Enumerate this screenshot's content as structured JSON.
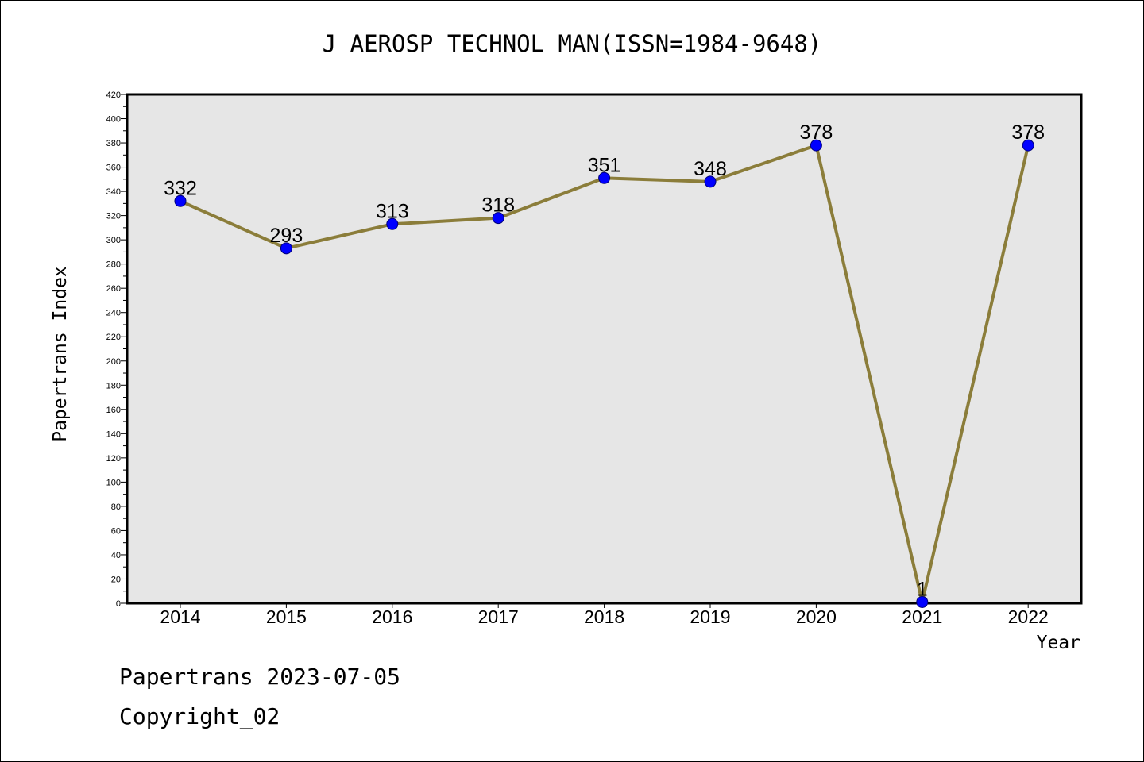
{
  "title": "J AEROSP TECHNOL MAN(ISSN=1984-9648)",
  "footer": {
    "line1": "Papertrans 2023-07-05",
    "line2": "Copyright_02"
  },
  "chart_data": {
    "type": "line",
    "title": "J AEROSP TECHNOL MAN(ISSN=1984-9648)",
    "xlabel": "Year",
    "ylabel": "Papertrans Index",
    "categories": [
      "2014",
      "2015",
      "2016",
      "2017",
      "2018",
      "2019",
      "2020",
      "2021",
      "2022"
    ],
    "series": [
      {
        "values": [
          332,
          293,
          313,
          318,
          351,
          348,
          378,
          1,
          378
        ]
      }
    ],
    "ylim": [
      0,
      420
    ],
    "ytick_step": 20,
    "grid": false,
    "colors": {
      "line": "#8b7d3a",
      "marker": "#0000ff",
      "plot_background": "#e6e6e6"
    }
  }
}
